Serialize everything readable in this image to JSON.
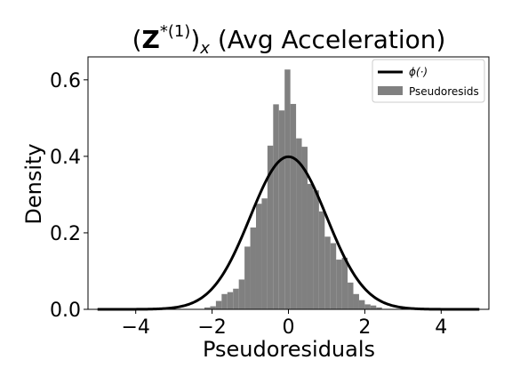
{
  "chart_data": {
    "type": "bar",
    "title": {
      "base": "(",
      "bold": "Z",
      "sup": "*(1)",
      "close": ")",
      "sub": "x",
      "tail": " (Avg Acceleration)"
    },
    "xlabel": "Pseudoresiduals",
    "ylabel": "Density",
    "xlim": [
      -5.25,
      5.25
    ],
    "ylim": [
      0,
      0.66
    ],
    "xticks": [
      -4,
      -2,
      0,
      2,
      4
    ],
    "xtick_labels": [
      "−4",
      "−2",
      "0",
      "2",
      "4"
    ],
    "yticks": [
      0.0,
      0.2,
      0.4,
      0.6
    ],
    "ytick_labels": [
      "0.0",
      "0.2",
      "0.4",
      "0.6"
    ],
    "grid": false,
    "legend_position": "top-right",
    "histogram": {
      "name": "Pseudoresids",
      "color": "#808080",
      "bin_edges": [
        -2.2,
        -2.05,
        -1.9,
        -1.75,
        -1.6,
        -1.45,
        -1.3,
        -1.15,
        -1.0,
        -0.85,
        -0.7,
        -0.55,
        -0.4,
        -0.25,
        -0.1,
        0.05,
        0.2,
        0.35,
        0.5,
        0.65,
        0.8,
        0.95,
        1.1,
        1.25,
        1.4,
        1.55,
        1.7,
        1.85,
        2.0,
        2.15,
        2.3,
        2.45
      ],
      "densities": [
        0.005,
        0.008,
        0.022,
        0.04,
        0.045,
        0.054,
        0.078,
        0.164,
        0.214,
        0.276,
        0.29,
        0.428,
        0.536,
        0.52,
        0.627,
        0.537,
        0.447,
        0.425,
        0.328,
        0.311,
        0.256,
        0.19,
        0.173,
        0.13,
        0.135,
        0.07,
        0.04,
        0.024,
        0.013,
        0.01,
        0.005
      ]
    },
    "curve": {
      "name": "ϕ(·)",
      "color": "#000000",
      "x_range": [
        -5,
        5
      ],
      "formula": "standard normal pdf"
    }
  }
}
